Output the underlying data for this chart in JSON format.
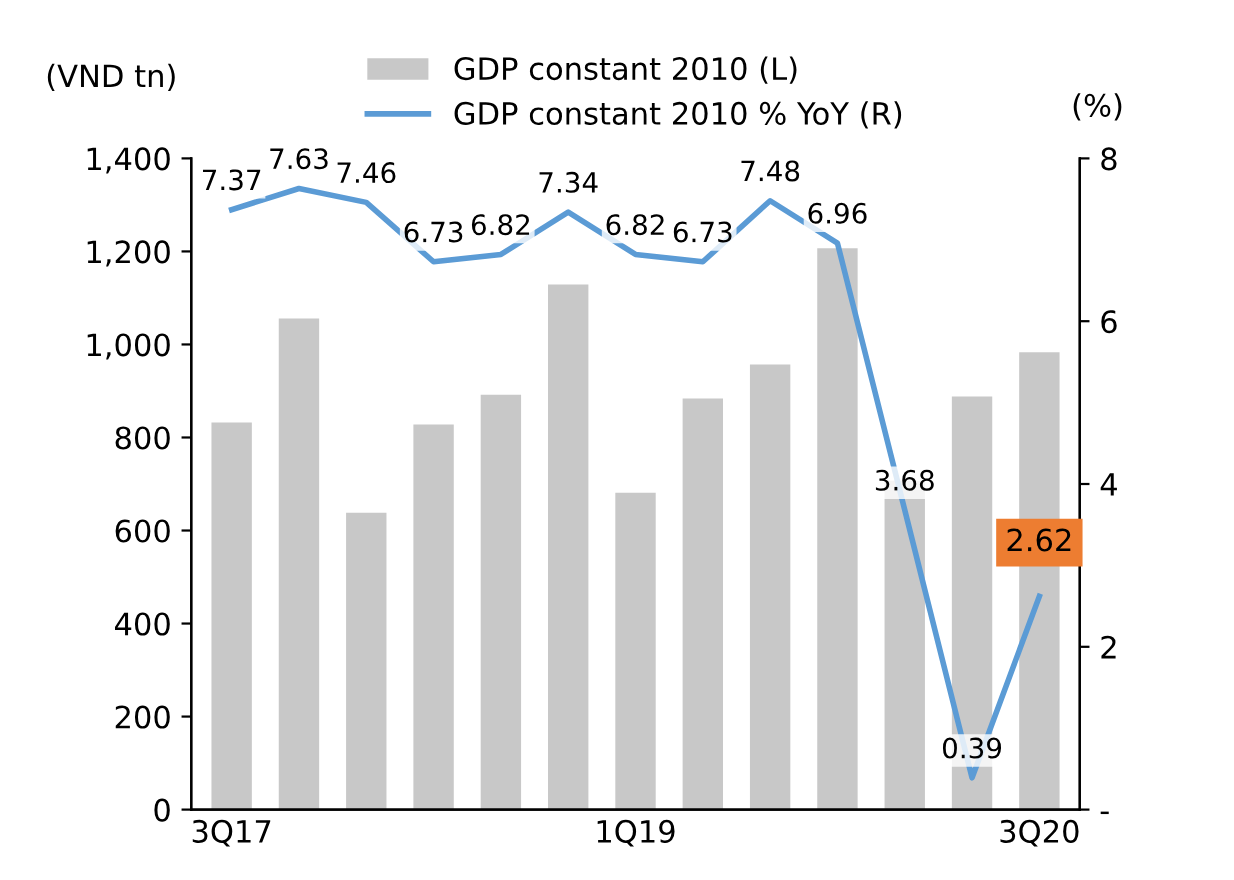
{
  "chart_data": {
    "type": "bar",
    "categories": [
      "3Q17",
      null,
      null,
      null,
      null,
      null,
      "1Q19",
      null,
      null,
      null,
      null,
      null,
      "3Q20"
    ],
    "series": [
      {
        "name": "GDP constant 2010 (L)",
        "color": "#c8c8c8",
        "values": [
          832,
          1056,
          638,
          828,
          892,
          1129,
          681,
          884,
          957,
          1207,
          707,
          888,
          983
        ]
      },
      {
        "name": "GDP constant 2010 % YoY (R)",
        "type": "line",
        "axis": "y2",
        "color": "#5b9bd5",
        "values": [
          7.37,
          7.63,
          7.46,
          6.73,
          6.82,
          7.34,
          6.82,
          6.73,
          7.48,
          6.96,
          3.68,
          0.39,
          2.62
        ],
        "value_labels": [
          "7.37",
          "7.63",
          "7.46",
          "6.73",
          "6.82",
          "7.34",
          "6.82",
          "6.73",
          "7.48",
          "6.96",
          "3.68",
          "0.39",
          "2.62"
        ]
      }
    ],
    "ylabel": "(VND tn)",
    "y2label": "(%)",
    "ylim": [
      0,
      1400
    ],
    "yticks": [
      {
        "value": 0,
        "label": "0"
      },
      {
        "value": 200,
        "label": "200"
      },
      {
        "value": 400,
        "label": "400"
      },
      {
        "value": 600,
        "label": "600"
      },
      {
        "value": 800,
        "label": "800"
      },
      {
        "value": 1000,
        "label": "1,000"
      },
      {
        "value": 1200,
        "label": "1,200"
      },
      {
        "value": 1400,
        "label": "1,400"
      }
    ],
    "y2lim": [
      0,
      8
    ],
    "y2ticks": [
      {
        "value": 0,
        "label": "-"
      },
      2,
      4,
      6,
      8
    ],
    "legend": "top",
    "grid": false,
    "marker": "none"
  }
}
